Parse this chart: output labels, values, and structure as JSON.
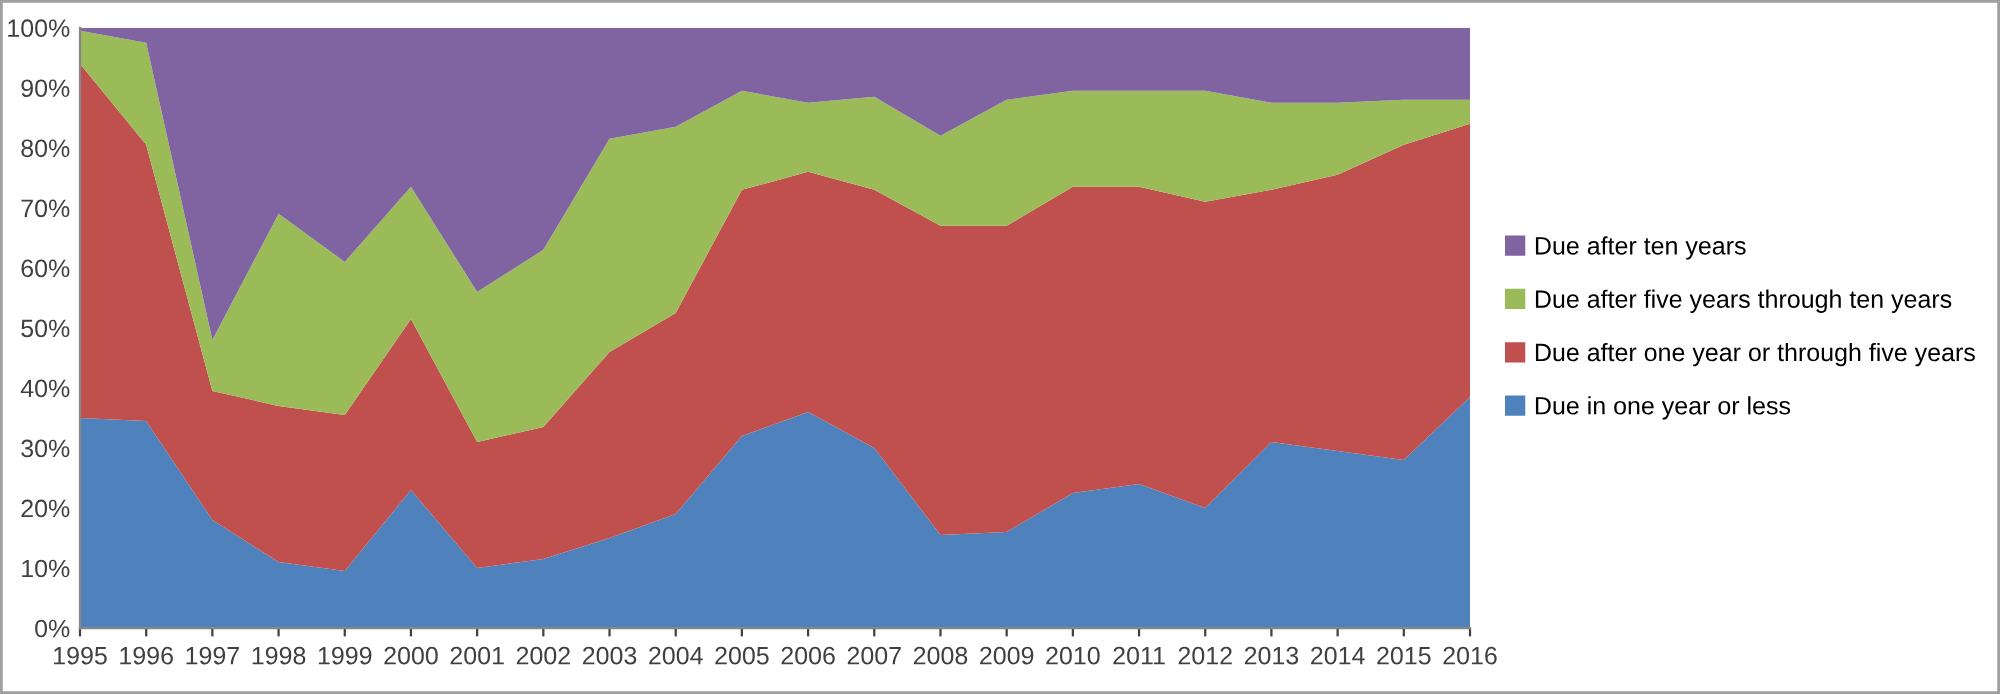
{
  "chart_data": {
    "type": "area",
    "stacked": true,
    "categories": [
      "1995",
      "1996",
      "1997",
      "1998",
      "1999",
      "2000",
      "2001",
      "2002",
      "2003",
      "2004",
      "2005",
      "2006",
      "2007",
      "2008",
      "2009",
      "2010",
      "2011",
      "2012",
      "2013",
      "2014",
      "2015",
      "2016"
    ],
    "series": [
      {
        "name": "Due in one year or less",
        "color": "#4f81bd",
        "values": [
          35,
          34.5,
          18,
          11,
          9.5,
          23,
          10,
          11.5,
          15,
          19,
          32,
          36,
          30,
          15.5,
          16,
          22.5,
          24,
          20,
          31,
          29.5,
          28,
          38.5
        ]
      },
      {
        "name": "Due after one year or through five years",
        "color": "#c0504d",
        "values": [
          59,
          46,
          21.5,
          26,
          26,
          28.5,
          21,
          22,
          31,
          33.5,
          41,
          40,
          43,
          51.5,
          51,
          51,
          49.5,
          51,
          42,
          46,
          52.5,
          45.5
        ]
      },
      {
        "name": "Due after five years through ten years",
        "color": "#9bbb59",
        "values": [
          5.5,
          17,
          8.5,
          32,
          25.5,
          22,
          25,
          29.5,
          35.5,
          31,
          16.5,
          11.5,
          15.5,
          15,
          21,
          16,
          16,
          18.5,
          14.5,
          12,
          7.5,
          4
        ]
      },
      {
        "name": "Due after ten years",
        "color": "#8064a2",
        "values": [
          0.5,
          2.5,
          52,
          31,
          39,
          26.5,
          44,
          37,
          18.5,
          16.5,
          10.5,
          12.5,
          11.5,
          18,
          12,
          10.5,
          10.5,
          10.5,
          12.5,
          12.5,
          12,
          12
        ]
      }
    ],
    "ylim": [
      0,
      100
    ],
    "yticks": [
      {
        "value": 0,
        "label": "0%"
      },
      {
        "value": 10,
        "label": "10%"
      },
      {
        "value": 20,
        "label": "20%"
      },
      {
        "value": 30,
        "label": "30%"
      },
      {
        "value": 40,
        "label": "40%"
      },
      {
        "value": 50,
        "label": "50%"
      },
      {
        "value": 60,
        "label": "60%"
      },
      {
        "value": 70,
        "label": "70%"
      },
      {
        "value": 80,
        "label": "80%"
      },
      {
        "value": 90,
        "label": "90%"
      },
      {
        "value": 100,
        "label": "100%"
      }
    ],
    "grid": false,
    "legend": "right"
  }
}
